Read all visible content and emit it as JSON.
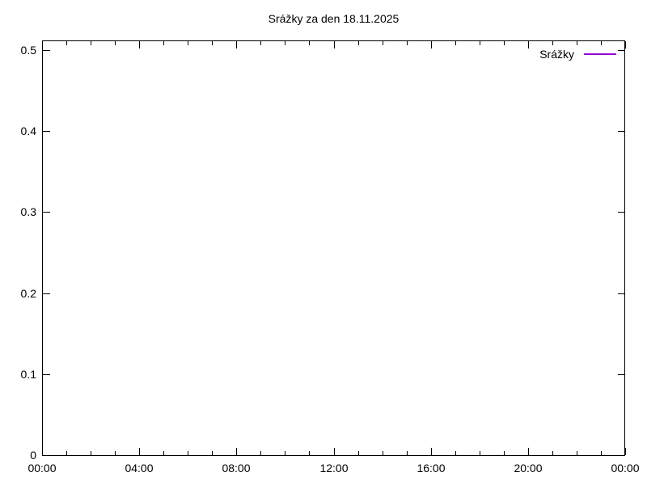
{
  "chart_data": {
    "type": "line",
    "title": "Srážky za den 18.11.2025",
    "xlabel": "",
    "ylabel": "",
    "grid": false,
    "x_axis": {
      "unit": "time-of-day",
      "range_hours": [
        0,
        24
      ],
      "major_tick_hours": [
        0,
        4,
        8,
        12,
        16,
        20,
        24
      ],
      "major_tick_labels": [
        "00:00",
        "04:00",
        "08:00",
        "12:00",
        "16:00",
        "20:00",
        "00:00"
      ],
      "minor_tick_interval_hours": 1,
      "ticks_mirrored_on_top": true
    },
    "y_axis": {
      "range": [
        0,
        0.512
      ],
      "tick_values": [
        0,
        0.1,
        0.2,
        0.3,
        0.4,
        0.5
      ],
      "tick_labels": [
        "0",
        "0.1",
        "0.2",
        "0.3",
        "0.4",
        "0.5"
      ],
      "ticks_mirrored_on_right": true
    },
    "legend": {
      "position": "top-right-inside",
      "entries": [
        {
          "label": "Srážky",
          "color": "#9400d3"
        }
      ]
    },
    "series": [
      {
        "name": "Srážky",
        "color": "#9400d3",
        "x": [],
        "values": []
      }
    ]
  },
  "colors": {
    "background": "#ffffff",
    "axis": "#000000",
    "text": "#000000"
  }
}
